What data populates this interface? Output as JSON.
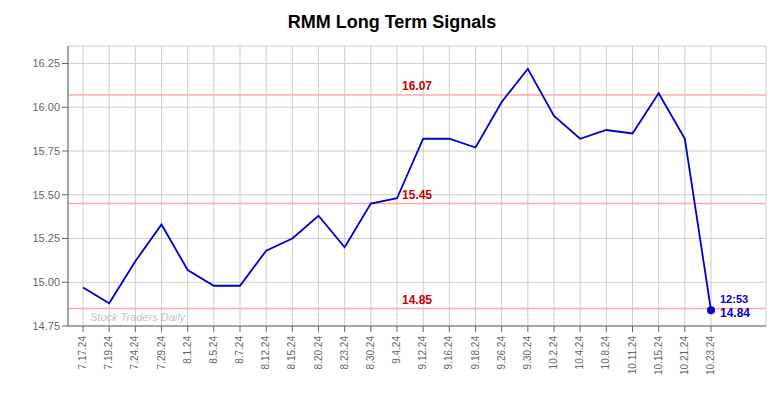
{
  "chart_data": {
    "type": "line",
    "title": "RMM Long Term Signals",
    "categories": [
      "7.17.24",
      "7.19.24",
      "7.24.24",
      "7.29.24",
      "8.1.24",
      "8.5.24",
      "8.7.24",
      "8.12.24",
      "8.15.24",
      "8.20.24",
      "8.23.24",
      "8.30.24",
      "9.4.24",
      "9.12.24",
      "9.16.24",
      "9.18.24",
      "9.26.24",
      "9.30.24",
      "10.2.24",
      "10.4.24",
      "10.8.24",
      "10.11.24",
      "10.15.24",
      "10.21.24",
      "10.23.24"
    ],
    "values": [
      14.97,
      14.88,
      15.12,
      15.33,
      15.07,
      14.98,
      14.98,
      15.18,
      15.25,
      15.38,
      15.2,
      15.45,
      15.48,
      15.82,
      15.82,
      15.77,
      16.03,
      16.22,
      15.95,
      15.82,
      15.87,
      15.85,
      16.08,
      15.82,
      14.84
    ],
    "color": "#0000cc",
    "marker": "last",
    "ylim": [
      14.75,
      16.35
    ],
    "yticks": [
      14.75,
      {
        "value": 15.0,
        "label": "15.00"
      },
      15.25,
      {
        "value": 15.5,
        "label": "15.50"
      },
      15.75,
      {
        "value": 16.0,
        "label": "16.00"
      },
      16.25
    ],
    "grid": true,
    "hlines": [
      {
        "value": 16.07,
        "label": "16.07",
        "color": "#ffaaaa",
        "label_color": "#cc0000"
      },
      {
        "value": 15.45,
        "label": "15.45",
        "color": "#ffaaaa",
        "label_color": "#cc0000"
      },
      {
        "value": 14.85,
        "label": "14.85",
        "color": "#ffaaaa",
        "label_color": "#cc0000"
      }
    ],
    "annotations": [
      {
        "text": "12:53",
        "x": "10.23.24",
        "color": "#0000cc"
      },
      {
        "text": "14.84",
        "x": "10.23.24",
        "color": "#0000cc"
      },
      {
        "text": "Stock Traders Daily",
        "color": "#aaaaaa"
      }
    ]
  }
}
